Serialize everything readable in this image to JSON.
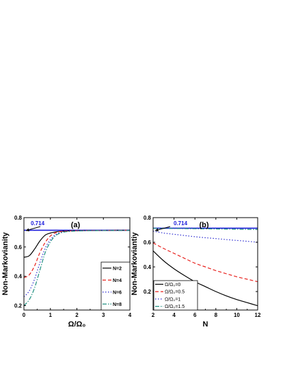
{
  "chart_data": [
    {
      "type": "line",
      "panel_label": "(a)",
      "xlabel": "Ω/Ω₀",
      "ylabel": "Non-Markovianity",
      "xlim": [
        0,
        4
      ],
      "ylim": [
        0.17,
        0.8
      ],
      "xticks": [
        "0",
        "1",
        "2",
        "3",
        "4"
      ],
      "yticks": [
        "0.2",
        "0.4",
        "0.6",
        "0.8"
      ],
      "annotation": "0.714",
      "reference_line": {
        "y": 0.714,
        "color": "#1a1adb"
      },
      "legend_position": "bottom-right",
      "series": [
        {
          "name": "N=2",
          "color": "#000000",
          "dash": "solid",
          "x": [
            0,
            0.2,
            0.4,
            0.6,
            0.8,
            1.0,
            1.2,
            1.4,
            1.6,
            2.0,
            2.5,
            3.0,
            4.0
          ],
          "y": [
            0.53,
            0.54,
            0.585,
            0.64,
            0.68,
            0.695,
            0.703,
            0.707,
            0.709,
            0.711,
            0.712,
            0.713,
            0.714
          ]
        },
        {
          "name": "N=4",
          "color": "#e8201c",
          "dash": "dashed",
          "x": [
            0,
            0.2,
            0.4,
            0.6,
            0.8,
            1.0,
            1.2,
            1.4,
            1.6,
            2.0,
            2.5,
            3.0,
            4.0
          ],
          "y": [
            0.39,
            0.41,
            0.47,
            0.56,
            0.63,
            0.675,
            0.697,
            0.705,
            0.708,
            0.711,
            0.712,
            0.713,
            0.714
          ]
        },
        {
          "name": "N=6",
          "color": "#2a2ad0",
          "dash": "dotted",
          "x": [
            0,
            0.2,
            0.4,
            0.6,
            0.8,
            1.0,
            1.2,
            1.4,
            1.6,
            2.0,
            2.5,
            3.0,
            4.0
          ],
          "y": [
            0.26,
            0.3,
            0.38,
            0.49,
            0.59,
            0.65,
            0.685,
            0.7,
            0.706,
            0.71,
            0.712,
            0.713,
            0.714
          ]
        },
        {
          "name": "N=8",
          "color": "#1f8f80",
          "dash": "dashdot",
          "x": [
            0,
            0.2,
            0.4,
            0.6,
            0.8,
            1.0,
            1.2,
            1.4,
            1.6,
            2.0,
            2.5,
            3.0,
            4.0
          ],
          "y": [
            0.2,
            0.24,
            0.32,
            0.44,
            0.56,
            0.635,
            0.678,
            0.696,
            0.704,
            0.709,
            0.711,
            0.712,
            0.713
          ]
        }
      ]
    },
    {
      "type": "line",
      "panel_label": "(b)",
      "xlabel": "N",
      "ylabel": "Non-Markoviantiy",
      "xlim": [
        2,
        12
      ],
      "ylim": [
        0.05,
        0.8
      ],
      "xticks": [
        "2",
        "4",
        "6",
        "8",
        "10",
        "12"
      ],
      "yticks": [
        "0.2",
        "0.4",
        "0.6",
        "0.8"
      ],
      "annotation": "0.714",
      "reference_line": {
        "y": 0.714,
        "color": "#1a1adb"
      },
      "legend_position": "bottom-left",
      "series": [
        {
          "name": "Ω/Ω₀=0",
          "color": "#000000",
          "dash": "solid",
          "x": [
            2,
            3,
            4,
            5,
            6,
            7,
            8,
            9,
            10,
            11,
            12
          ],
          "y": [
            0.53,
            0.45,
            0.385,
            0.33,
            0.28,
            0.24,
            0.2,
            0.165,
            0.135,
            0.11,
            0.085
          ]
        },
        {
          "name": "Ω/Ω₀=0.5",
          "color": "#e8201c",
          "dash": "dashed",
          "x": [
            2,
            3,
            4,
            5,
            6,
            7,
            8,
            9,
            10,
            11,
            12
          ],
          "y": [
            0.595,
            0.55,
            0.51,
            0.47,
            0.43,
            0.4,
            0.37,
            0.345,
            0.32,
            0.3,
            0.28
          ]
        },
        {
          "name": "Ω/Ω₀=1",
          "color": "#2a2ad0",
          "dash": "dotted",
          "x": [
            2,
            3,
            4,
            5,
            6,
            7,
            8,
            9,
            10,
            11,
            12
          ],
          "y": [
            0.69,
            0.675,
            0.665,
            0.655,
            0.645,
            0.637,
            0.63,
            0.622,
            0.615,
            0.608,
            0.6
          ]
        },
        {
          "name": "Ω/Ω₀=1.5",
          "color": "#1f8f80",
          "dash": "dashdot",
          "x": [
            2,
            3,
            4,
            5,
            6,
            7,
            8,
            9,
            10,
            11,
            12
          ],
          "y": [
            0.714,
            0.713,
            0.712,
            0.711,
            0.71,
            0.709,
            0.708,
            0.707,
            0.706,
            0.705,
            0.704
          ]
        }
      ]
    }
  ]
}
